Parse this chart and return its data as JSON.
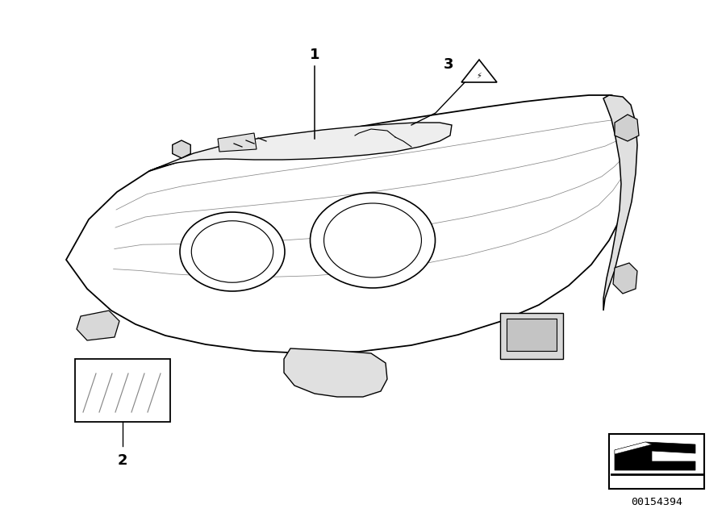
{
  "bg_color": "#ffffff",
  "line_color": "#000000",
  "dark_gray": "#333333",
  "mid_gray": "#888888",
  "light_gray": "#cccccc",
  "label_1": "1",
  "label_2": "2",
  "label_3": "3",
  "part_number": "00154394",
  "fig_width": 9.0,
  "fig_height": 6.36
}
